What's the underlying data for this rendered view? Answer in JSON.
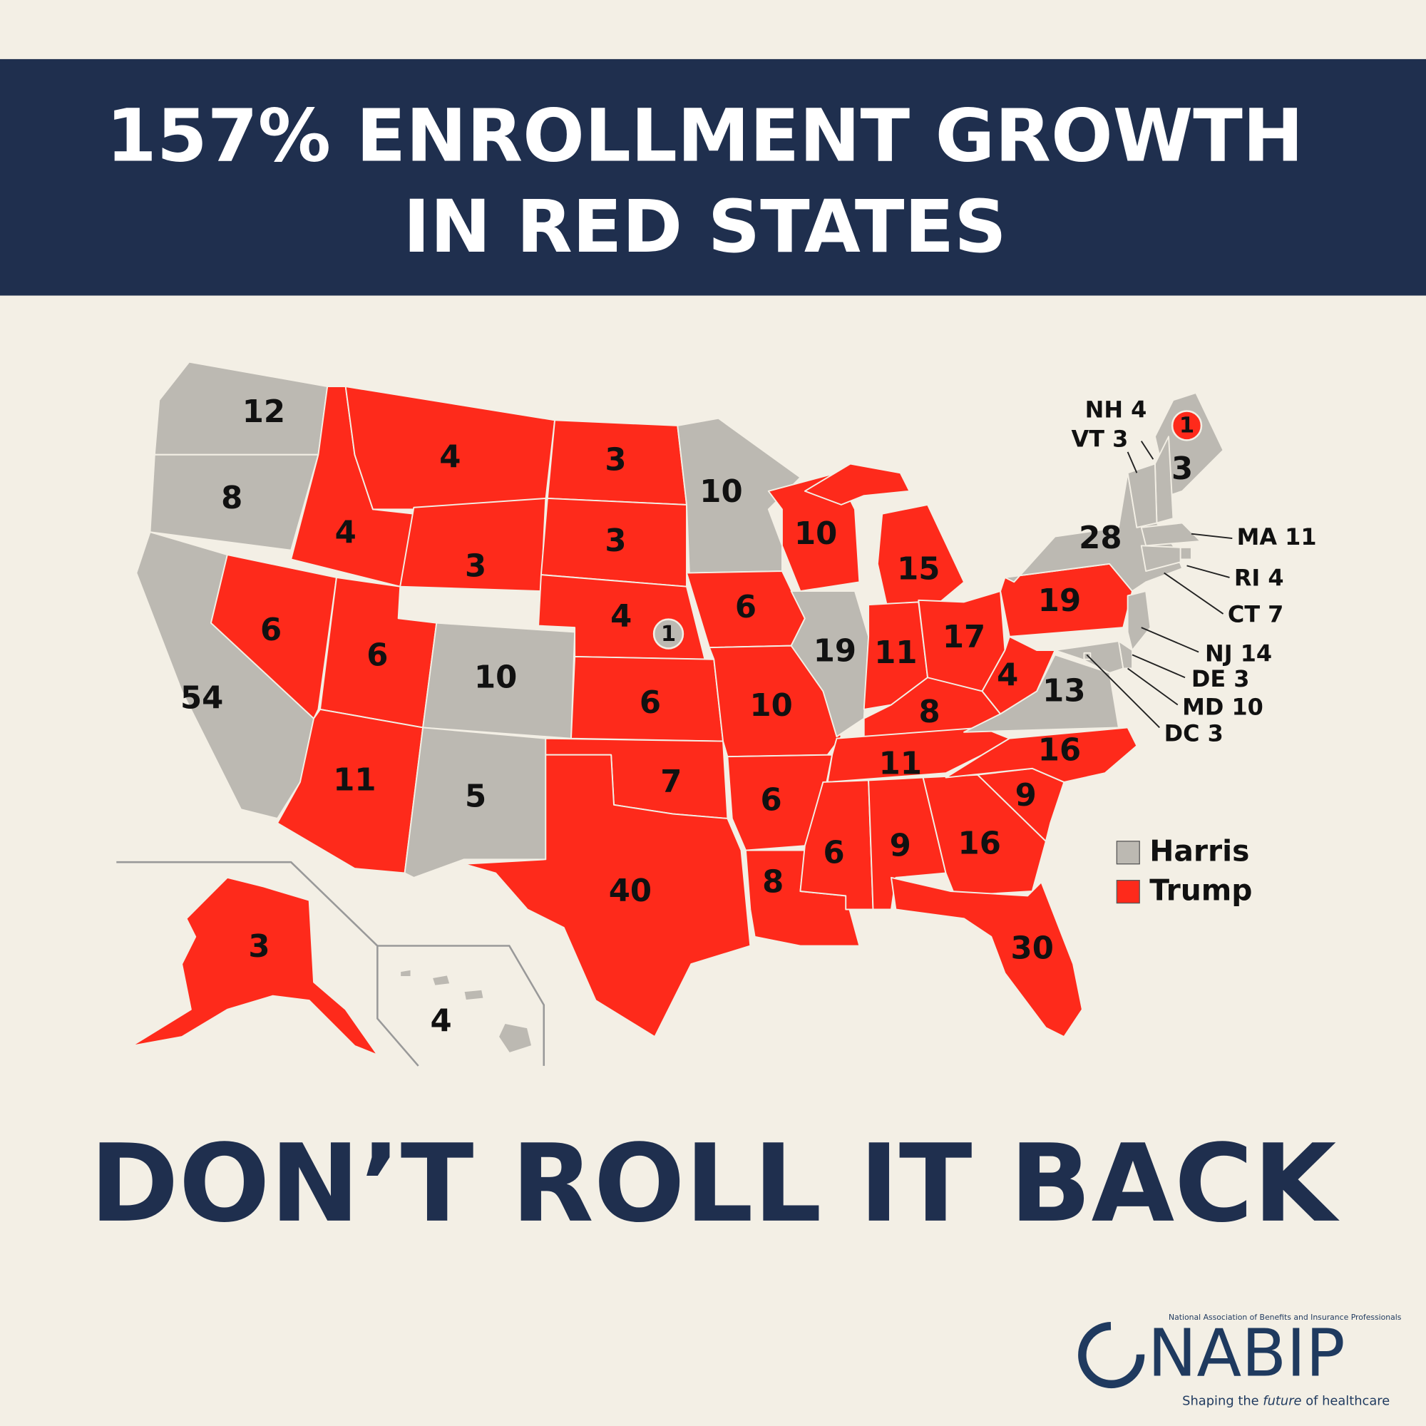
{
  "header": {
    "title_lines": [
      "157% ENROLLMENT GROWTH",
      "IN RED STATES"
    ]
  },
  "map": {
    "legend": [
      {
        "name": "Harris",
        "color": "#bcb9b2"
      },
      {
        "name": "Trump",
        "color": "#fe2a1b"
      }
    ],
    "states": [
      {
        "votes": 12,
        "winner": "Harris"
      },
      {
        "votes": 8,
        "winner": "Harris"
      },
      {
        "votes": 54,
        "winner": "Harris"
      },
      {
        "votes": 4,
        "winner": "Trump"
      },
      {
        "votes": 6,
        "winner": "Trump"
      },
      {
        "votes": 4,
        "winner": "Trump"
      },
      {
        "votes": 3,
        "winner": "Trump"
      },
      {
        "votes": 6,
        "winner": "Trump"
      },
      {
        "votes": 11,
        "winner": "Trump"
      },
      {
        "votes": 10,
        "winner": "Harris"
      },
      {
        "votes": 5,
        "winner": "Harris"
      },
      {
        "votes": 3,
        "winner": "Trump"
      },
      {
        "votes": 3,
        "winner": "Trump"
      },
      {
        "votes": 4,
        "winner": "Trump"
      },
      {
        "votes": 6,
        "winner": "Trump"
      },
      {
        "votes": 7,
        "winner": "Trump"
      },
      {
        "votes": 40,
        "winner": "Trump"
      },
      {
        "votes": 10,
        "winner": "Harris"
      },
      {
        "votes": 6,
        "winner": "Trump"
      },
      {
        "votes": 10,
        "winner": "Trump"
      },
      {
        "votes": 6,
        "winner": "Trump"
      },
      {
        "votes": 8,
        "winner": "Trump"
      },
      {
        "votes": 10,
        "winner": "Trump"
      },
      {
        "votes": 19,
        "winner": "Harris"
      },
      {
        "votes": 15,
        "winner": "Trump"
      },
      {
        "votes": 11,
        "winner": "Trump"
      },
      {
        "votes": 17,
        "winner": "Trump"
      },
      {
        "votes": 8,
        "winner": "Trump"
      },
      {
        "votes": 11,
        "winner": "Trump"
      },
      {
        "votes": 6,
        "winner": "Trump"
      },
      {
        "votes": 9,
        "winner": "Trump"
      },
      {
        "votes": 16,
        "winner": "Trump"
      },
      {
        "votes": 30,
        "winner": "Trump"
      },
      {
        "votes": 9,
        "winner": "Trump"
      },
      {
        "votes": 16,
        "winner": "Trump"
      },
      {
        "votes": 13,
        "winner": "Harris"
      },
      {
        "votes": 4,
        "winner": "Trump"
      },
      {
        "votes": 19,
        "winner": "Trump"
      },
      {
        "votes": 28,
        "winner": "Harris"
      },
      {
        "votes": 3,
        "winner": "Harris"
      },
      {
        "votes": 3,
        "winner": "Trump"
      },
      {
        "votes": 4,
        "winner": "Harris"
      },
      {
        "label": "NH",
        "votes": 4,
        "winner": "Harris"
      },
      {
        "label": "VT",
        "votes": 3,
        "winner": "Harris"
      },
      {
        "label": "MA",
        "votes": 11,
        "winner": "Harris"
      },
      {
        "label": "RI",
        "votes": 4,
        "winner": "Harris"
      },
      {
        "label": "CT",
        "votes": 7,
        "winner": "Harris"
      },
      {
        "label": "NJ",
        "votes": 14,
        "winner": "Harris"
      },
      {
        "label": "DE",
        "votes": 3,
        "winner": "Harris"
      },
      {
        "label": "MD",
        "votes": 10,
        "winner": "Harris"
      },
      {
        "label": "DC",
        "votes": 3,
        "winner": "Harris"
      }
    ],
    "districts": [
      {
        "votes": 1,
        "winner": "Harris"
      },
      {
        "votes": 1,
        "winner": "Trump"
      }
    ]
  },
  "slogan": "DON’T ROLL IT BACK",
  "logo": {
    "org": "National Association of Benefits and Insurance Professionals",
    "name": "NABIP",
    "tagline": {
      "before": "Shaping the",
      "emphasis": "future",
      "after": "of healthcare"
    }
  }
}
